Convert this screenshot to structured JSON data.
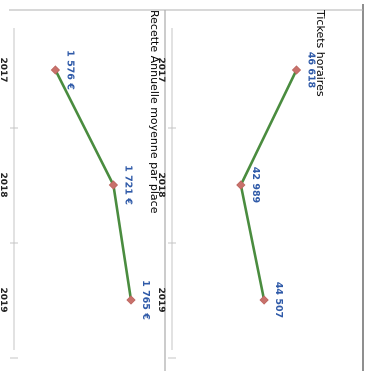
{
  "chart_data": [
    {
      "type": "line",
      "title": "Tickets horaires",
      "categories": [
        "2017",
        "2018",
        "2019"
      ],
      "series": [
        {
          "values": [
            46618,
            42989,
            44507
          ]
        }
      ],
      "data_labels": [
        "46 618",
        "42 989",
        "44 507"
      ],
      "ylim": [
        40000,
        47500
      ],
      "grid": false
    },
    {
      "type": "line",
      "title": "Recette Annuelle moyenne par place",
      "categories": [
        "2017",
        "2018",
        "2019"
      ],
      "series": [
        {
          "values": [
            1576,
            1721,
            1765
          ]
        }
      ],
      "data_labels": [
        "1 576 €",
        "1 721 €",
        "1 765 €"
      ],
      "ylim": [
        1500,
        1800
      ],
      "grid": false
    }
  ],
  "colors": {
    "line": "#3f7f48",
    "line_stroke": "#4a8c3f",
    "marker": "#c8716b",
    "data_label": "#2f5aa8",
    "tick_label": "#222222",
    "title": "#111111",
    "frame": "#9a9a9a"
  }
}
